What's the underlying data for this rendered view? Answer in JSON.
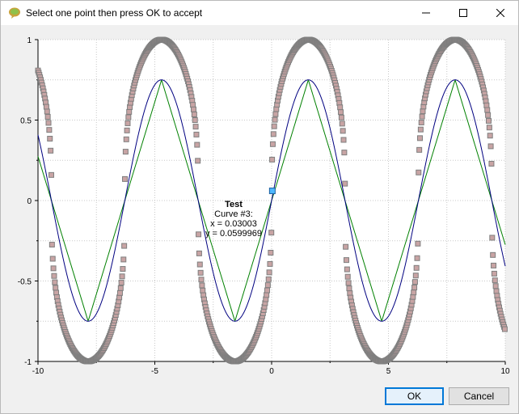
{
  "window": {
    "title": "Select one point then press OK to accept",
    "icon": "app-icon"
  },
  "titlebar_buttons": {
    "minimize_icon": "minimize-icon",
    "maximize_icon": "maximize-icon",
    "close_icon": "close-icon"
  },
  "tooltip": {
    "title": "Test",
    "curve": "Curve #3:",
    "x_line": "x = 0.03003",
    "y_line": "y = 0.0599969"
  },
  "buttons": {
    "ok_label": "OK",
    "cancel_label": "Cancel"
  },
  "chart_data": {
    "type": "line",
    "xlim": [
      -10,
      10
    ],
    "ylim": [
      -1,
      1
    ],
    "x_ticks": [
      "-10",
      "-5",
      "0",
      "5",
      "10"
    ],
    "y_ticks": [
      "1",
      "0.5",
      "0",
      "-0.5",
      "-1"
    ],
    "grid": true,
    "grid_style": "dotted",
    "series": [
      {
        "function": "smooth",
        "color": "#000080",
        "amplitude": 0.75,
        "frequency": 1.0,
        "style": "line"
      },
      {
        "function": "piecewise-linear",
        "color": "#008000",
        "amplitude": 0.75,
        "frequency": 1.0,
        "style": "line"
      },
      {
        "function": "square-ish",
        "color": "#7f7f7f",
        "fill": "#c8a4a4",
        "amplitude": 1.0,
        "frequency": 1.0,
        "style": "markers"
      }
    ],
    "selected_point": {
      "x": 0.03003,
      "y": 0.0599969,
      "color": "#4fb8ff"
    }
  }
}
